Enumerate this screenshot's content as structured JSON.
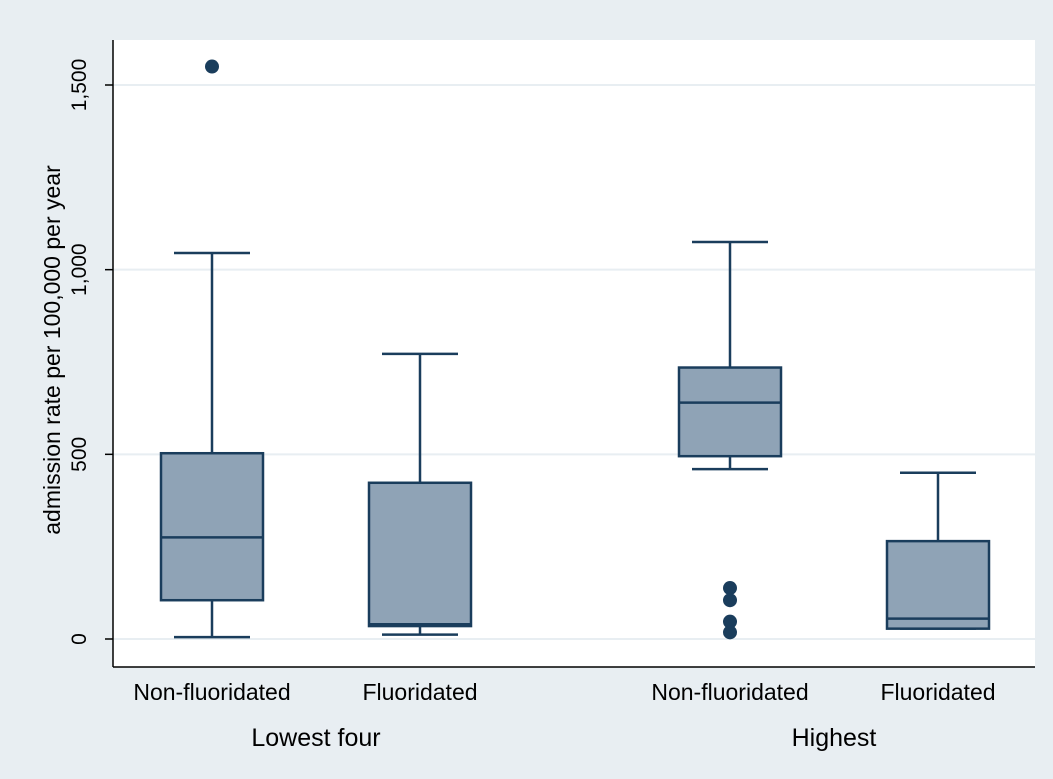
{
  "chart_data": {
    "type": "box",
    "title": "",
    "ylabel": "admission rate per 100,000 per year",
    "xlabel": "",
    "ylim": [
      -70,
      1610
    ],
    "yticks": [
      0,
      500,
      1000,
      1500
    ],
    "ytick_labels": [
      "0",
      "500",
      "1,000",
      "1,500"
    ],
    "grid": true,
    "groups": [
      {
        "label": "Lowest four",
        "boxes": [
          {
            "label": "Non-fluoridated",
            "whisker_low": 5,
            "q1": 105,
            "median": 275,
            "q3": 503,
            "whisker_high": 1045,
            "outliers": [
              1550
            ]
          },
          {
            "label": "Fluoridated",
            "whisker_low": 12,
            "q1": 35,
            "median": 40,
            "q3": 423,
            "whisker_high": 772,
            "outliers": []
          }
        ]
      },
      {
        "label": "Highest",
        "boxes": [
          {
            "label": "Non-fluoridated",
            "whisker_low": 460,
            "q1": 495,
            "median": 640,
            "q3": 735,
            "whisker_high": 1075,
            "outliers": [
              138,
              105,
              47,
              18
            ]
          },
          {
            "label": "Fluoridated",
            "whisker_low": 28,
            "q1": 28,
            "median": 55,
            "q3": 265,
            "whisker_high": 450,
            "outliers": []
          }
        ]
      }
    ],
    "colors": {
      "background": "#e8eef2",
      "plot_area": "#ffffff",
      "box_fill": "#8fa3b6",
      "line": "#1a3d5c",
      "outlier": "#1a3d5c",
      "grid": "#e8eef2"
    }
  }
}
